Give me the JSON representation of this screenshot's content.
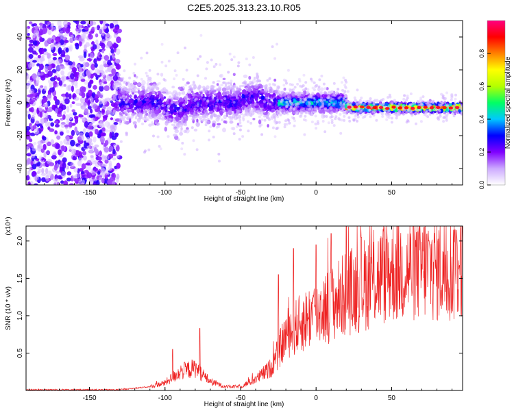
{
  "title": "C2E5.2025.313.23.10.R05",
  "chart_data": [
    {
      "type": "heatmap",
      "title": "C2E5.2025.313.23.10.R05",
      "xlabel": "Height of straight line (km)",
      "ylabel": "Frequency (Hz)",
      "xlim": [
        -192,
        97
      ],
      "ylim": [
        -50,
        50
      ],
      "xticks": [
        -150,
        -100,
        -50,
        0,
        50
      ],
      "yticks": [
        -40,
        -20,
        0,
        20,
        40
      ],
      "colorbar": {
        "label": "Normalized spectral amplitude",
        "range": [
          0,
          1
        ],
        "ticks": [
          0,
          0.2,
          0.4,
          0.6,
          0.8
        ],
        "tick_labels": [
          "0.0",
          "0.2",
          "0.4",
          "0.6",
          "0.8"
        ],
        "colors": [
          "#ffffff",
          "#ccaaff",
          "#8000ff",
          "#0000ff",
          "#00c8ff",
          "#00ff64",
          "#b4ff00",
          "#ffff00",
          "#ff8000",
          "#ff0000",
          "#ff0080"
        ]
      },
      "regions": [
        {
          "name": "noise",
          "x_range": [
            -192,
            -130
          ],
          "y_range": [
            -50,
            50
          ],
          "amplitude": 0.15
        },
        {
          "name": "weak-track",
          "x_range": [
            -130,
            -25
          ],
          "center_hz": 0,
          "spread_hz": 6,
          "amplitude": 0.3
        },
        {
          "name": "strong-track",
          "x_range": [
            -25,
            20
          ],
          "center_hz": 0,
          "spread_hz": 3,
          "amplitude": 0.5
        },
        {
          "name": "peak-track",
          "x_range": [
            20,
            97
          ],
          "center_hz": -3,
          "spread_hz": 1.5,
          "amplitude": 0.9
        }
      ]
    },
    {
      "type": "line",
      "xlabel": "Height of straight line (km)",
      "ylabel": "SNR (10 * v/v)",
      "y_multiplier": "(x10⁴)",
      "xlim": [
        -192,
        97
      ],
      "ylim": [
        0,
        2.2
      ],
      "xticks": [
        -150,
        -100,
        -50,
        0,
        50
      ],
      "yticks": [
        0.5,
        1.0,
        1.5,
        2.0
      ],
      "ytick_labels": [
        "0.5",
        "1.0",
        "1.5",
        "2.0"
      ],
      "color": "#ee2222",
      "envelope": {
        "x": [
          -192,
          -130,
          -110,
          -100,
          -90,
          -80,
          -70,
          -60,
          -50,
          -40,
          -30,
          -25,
          -20,
          -10,
          0,
          10,
          20,
          30,
          40,
          50,
          60,
          70,
          80,
          90,
          97
        ],
        "y": [
          0.01,
          0.01,
          0.05,
          0.1,
          0.25,
          0.3,
          0.12,
          0.05,
          0.05,
          0.15,
          0.3,
          0.5,
          0.75,
          0.9,
          1.05,
          1.15,
          1.3,
          1.4,
          1.52,
          1.6,
          1.62,
          1.65,
          1.63,
          1.62,
          1.7
        ]
      },
      "peaks": [
        {
          "x": -95,
          "y": 0.55
        },
        {
          "x": -77,
          "y": 0.83
        },
        {
          "x": -25,
          "y": 1.55
        },
        {
          "x": -15,
          "y": 1.9
        },
        {
          "x": 0,
          "y": 1.95
        },
        {
          "x": 10,
          "y": 2.1
        },
        {
          "x": 20,
          "y": 2.2
        },
        {
          "x": 30,
          "y": 2.05
        },
        {
          "x": 92,
          "y": 2.15
        }
      ]
    }
  ]
}
